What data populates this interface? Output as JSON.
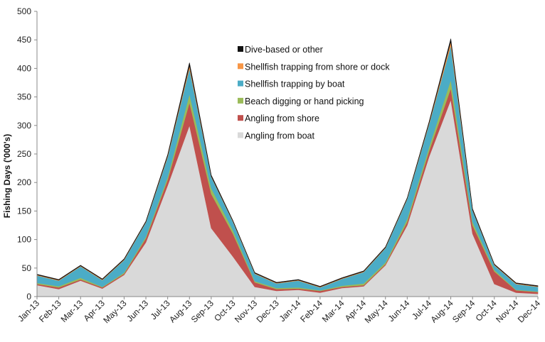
{
  "chart_data": {
    "type": "area",
    "stacked": true,
    "ylabel": "Fishing Days ('000's)",
    "xlabel": "",
    "ylim": [
      0,
      500
    ],
    "yticks": [
      0,
      50,
      100,
      150,
      200,
      250,
      300,
      350,
      400,
      450,
      500
    ],
    "grid": false,
    "legend_position": "center",
    "categories": [
      "Jan-13",
      "Feb-13",
      "Mar-13",
      "Apr-13",
      "May-13",
      "Jun-13",
      "Jul-13",
      "Aug-13",
      "Sep-13",
      "Oct-13",
      "Nov-13",
      "Dec-13",
      "Jan-14",
      "Feb-14",
      "Mar-14",
      "Apr-14",
      "May-14",
      "Jun-14",
      "Jul-14",
      "Aug-14",
      "Sep-14",
      "Oct-14",
      "Nov-14",
      "Dec-14"
    ],
    "series": [
      {
        "name": "Angling from boat",
        "color": "#d9d9d9",
        "values": [
          20,
          13,
          28,
          14,
          38,
          95,
          195,
          300,
          120,
          70,
          17,
          10,
          12,
          7,
          15,
          18,
          55,
          125,
          245,
          345,
          110,
          22,
          7,
          5
        ]
      },
      {
        "name": "Angling from shore",
        "color": "#c0504d",
        "values": [
          2,
          3,
          2,
          2,
          2,
          7,
          10,
          40,
          60,
          40,
          8,
          3,
          2,
          3,
          2,
          2,
          2,
          6,
          10,
          20,
          15,
          22,
          4,
          3
        ]
      },
      {
        "name": "Beach digging or hand picking",
        "color": "#9bbb59",
        "values": [
          2,
          2,
          3,
          1,
          2,
          3,
          5,
          15,
          10,
          6,
          2,
          2,
          2,
          1,
          2,
          3,
          3,
          5,
          7,
          15,
          6,
          3,
          1,
          1
        ]
      },
      {
        "name": "Shellfish trapping by boat",
        "color": "#4bacc6",
        "values": [
          13,
          10,
          20,
          12,
          22,
          25,
          35,
          45,
          20,
          15,
          13,
          8,
          12,
          5,
          12,
          20,
          25,
          35,
          40,
          60,
          20,
          8,
          10,
          8
        ]
      },
      {
        "name": "Shellfish trapping from shore or dock",
        "color": "#f79646",
        "values": [
          1,
          1,
          1,
          1,
          1,
          1,
          2,
          5,
          1,
          1,
          1,
          1,
          1,
          1,
          1,
          1,
          1,
          1,
          2,
          7,
          1,
          1,
          1,
          1
        ]
      },
      {
        "name": "Dive-based or other",
        "color": "#111111",
        "values": [
          1,
          1,
          1,
          1,
          1,
          1,
          2,
          5,
          2,
          1,
          1,
          1,
          1,
          1,
          1,
          1,
          1,
          1,
          2,
          5,
          2,
          1,
          1,
          1
        ]
      }
    ],
    "legend_order": [
      "Dive-based or other",
      "Shellfish trapping from shore or dock",
      "Shellfish trapping by boat",
      "Beach digging or hand picking",
      "Angling from shore",
      "Angling from boat"
    ]
  }
}
